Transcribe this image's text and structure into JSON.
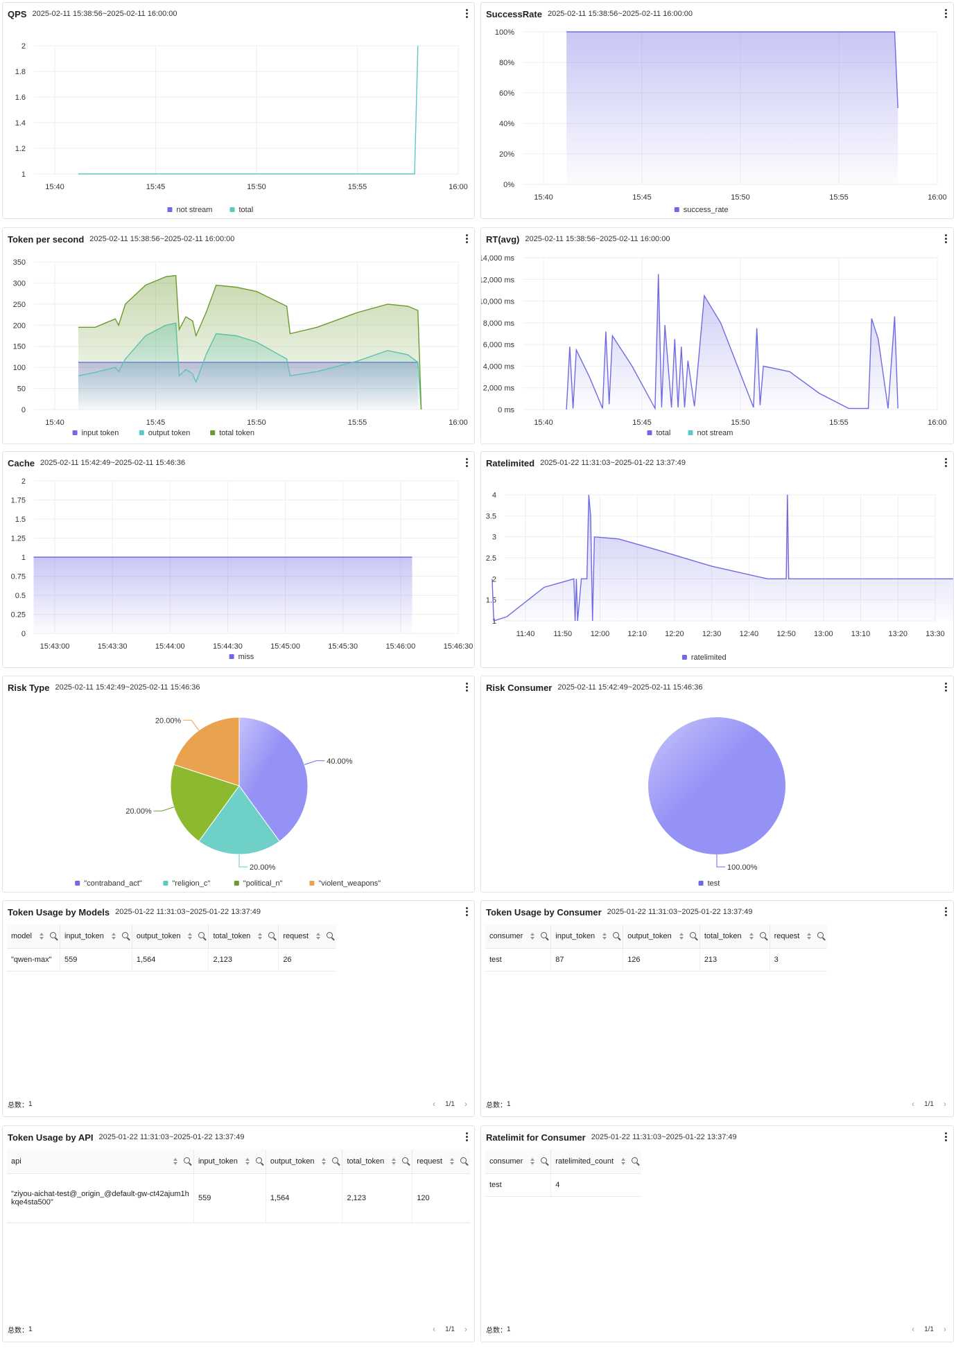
{
  "menu_icon": "more-vertical-icon",
  "panels": {
    "qps": {
      "title": "QPS",
      "range": "2025-02-11 15:38:56~2025-02-11 16:00:00",
      "legend": [
        "not stream",
        "total"
      ]
    },
    "success": {
      "title": "SuccessRate",
      "range": "2025-02-11 15:38:56~2025-02-11 16:00:00",
      "legend": [
        "success_rate"
      ]
    },
    "tps": {
      "title": "Token per second",
      "range": "2025-02-11 15:38:56~2025-02-11 16:00:00",
      "legend": [
        "input token",
        "output token",
        "total token"
      ]
    },
    "rt": {
      "title": "RT(avg)",
      "range": "2025-02-11 15:38:56~2025-02-11 16:00:00",
      "legend": [
        "total",
        "not stream"
      ]
    },
    "cache": {
      "title": "Cache",
      "range": "2025-02-11 15:42:49~2025-02-11 15:46:36",
      "legend": [
        "miss"
      ]
    },
    "ratelimited": {
      "title": "Ratelimited",
      "range": "2025-01-22 11:31:03~2025-01-22 13:37:49",
      "legend": [
        "ratelimited"
      ]
    },
    "risk_type": {
      "title": "Risk Type",
      "range": "2025-02-11 15:42:49~2025-02-11 15:46:36",
      "legend": [
        "\"contraband_act\"",
        "\"religion_c\"",
        "\"political_n\"",
        "\"violent_weapons\""
      ]
    },
    "risk_consumer": {
      "title": "Risk Consumer",
      "range": "2025-02-11 15:42:49~2025-02-11 15:46:36",
      "legend": [
        "test"
      ]
    },
    "usage_models": {
      "title": "Token Usage by Models",
      "range": "2025-01-22 11:31:03~2025-01-22 13:37:49"
    },
    "usage_consumer": {
      "title": "Token Usage by Consumer",
      "range": "2025-01-22 11:31:03~2025-01-22 13:37:49"
    },
    "usage_api": {
      "title": "Token Usage by API",
      "range": "2025-01-22 11:31:03~2025-01-22 13:37:49"
    },
    "rl_consumer": {
      "title": "Ratelimit for Consumer",
      "range": "2025-01-22 11:31:03~2025-01-22 13:37:49"
    }
  },
  "tables": {
    "usage_models": {
      "columns": [
        "model",
        "input_token",
        "output_token",
        "total_token",
        "request"
      ],
      "rows": [
        [
          "\"qwen-max\"",
          "559",
          "1,564",
          "2,123",
          "26"
        ]
      ],
      "total_label": "总数：",
      "total": "1",
      "page": "1/1"
    },
    "usage_consumer": {
      "columns": [
        "consumer",
        "input_token",
        "output_token",
        "total_token",
        "request"
      ],
      "rows": [
        [
          "test",
          "87",
          "126",
          "213",
          "3"
        ]
      ],
      "total_label": "总数：",
      "total": "1",
      "page": "1/1"
    },
    "usage_api": {
      "columns": [
        "api",
        "input_token",
        "output_token",
        "total_token",
        "request"
      ],
      "rows": [
        [
          "\"ziyou-aichat-test@_origin_@default-gw-ct42ajum1hkqe4sta500\"",
          "559",
          "1,564",
          "2,123",
          "120"
        ]
      ],
      "total_label": "总数：",
      "total": "1",
      "page": "1/1"
    },
    "rl_consumer": {
      "columns": [
        "consumer",
        "ratelimited_count"
      ],
      "rows": [
        [
          "test",
          "4"
        ]
      ],
      "total_label": "总数：",
      "total": "1",
      "page": "1/1"
    }
  },
  "colors": {
    "purple": "#6f6ae3",
    "teal": "#5bc8c3",
    "green": "#6b9a2c",
    "orange": "#e9a24e",
    "grid": "#eeeeee"
  },
  "chart_data": [
    {
      "id": "qps",
      "type": "line",
      "title": "QPS",
      "x_ticks": [
        "15:40",
        "15:45",
        "15:50",
        "15:55",
        "16:00"
      ],
      "y_ticks": [
        "1",
        "1.2",
        "1.4",
        "1.6",
        "1.8",
        "2"
      ],
      "ylim": [
        1,
        2
      ],
      "series": [
        {
          "name": "not stream",
          "points": []
        },
        {
          "name": "total",
          "points": [
            [
              "15:41:10",
              1
            ],
            [
              "15:57:50",
              1
            ],
            [
              "15:58:00",
              2
            ]
          ]
        }
      ]
    },
    {
      "id": "success",
      "type": "area",
      "title": "SuccessRate",
      "x_ticks": [
        "15:40",
        "15:45",
        "15:50",
        "15:55",
        "16:00"
      ],
      "y_ticks": [
        "0%",
        "20%",
        "40%",
        "60%",
        "80%",
        "100%"
      ],
      "ylim": [
        0,
        100
      ],
      "series": [
        {
          "name": "success_rate",
          "points": [
            [
              "15:41:10",
              100
            ],
            [
              "15:57:50",
              100
            ],
            [
              "15:58:00",
              50
            ]
          ]
        }
      ]
    },
    {
      "id": "tps",
      "type": "area",
      "title": "Token per second",
      "x_ticks": [
        "15:40",
        "15:45",
        "15:50",
        "15:55",
        "16:00"
      ],
      "y_ticks": [
        "0",
        "50",
        "100",
        "150",
        "200",
        "250",
        "300",
        "350"
      ],
      "ylim": [
        0,
        350
      ],
      "series": [
        {
          "name": "input token",
          "points": [
            [
              "15:41:10",
              112
            ],
            [
              "15:58:00",
              112
            ]
          ]
        },
        {
          "name": "output token",
          "points": [
            [
              "15:41:10",
              80
            ],
            [
              "15:42:00",
              88
            ],
            [
              "15:43:00",
              100
            ],
            [
              "15:43:10",
              90
            ],
            [
              "15:43:30",
              120
            ],
            [
              "15:44:30",
              175
            ],
            [
              "15:45:30",
              200
            ],
            [
              "15:46:00",
              205
            ],
            [
              "15:46:10",
              80
            ],
            [
              "15:46:30",
              95
            ],
            [
              "15:46:50",
              85
            ],
            [
              "15:47:00",
              65
            ],
            [
              "15:47:30",
              130
            ],
            [
              "15:48:00",
              180
            ],
            [
              "15:49:00",
              175
            ],
            [
              "15:50:00",
              160
            ],
            [
              "15:51:30",
              120
            ],
            [
              "15:51:40",
              80
            ],
            [
              "15:53:00",
              90
            ],
            [
              "15:55:00",
              115
            ],
            [
              "15:56:30",
              140
            ],
            [
              "15:57:30",
              130
            ],
            [
              "15:58:00",
              112
            ],
            [
              "15:58:10",
              0
            ]
          ]
        },
        {
          "name": "total token",
          "points": [
            [
              "15:41:10",
              195
            ],
            [
              "15:42:00",
              195
            ],
            [
              "15:43:00",
              215
            ],
            [
              "15:43:10",
              200
            ],
            [
              "15:43:30",
              250
            ],
            [
              "15:44:30",
              295
            ],
            [
              "15:45:30",
              315
            ],
            [
              "15:46:00",
              318
            ],
            [
              "15:46:10",
              190
            ],
            [
              "15:46:30",
              220
            ],
            [
              "15:46:50",
              210
            ],
            [
              "15:47:00",
              175
            ],
            [
              "15:47:30",
              230
            ],
            [
              "15:48:00",
              295
            ],
            [
              "15:49:00",
              290
            ],
            [
              "15:50:00",
              280
            ],
            [
              "15:51:30",
              245
            ],
            [
              "15:51:40",
              180
            ],
            [
              "15:53:00",
              195
            ],
            [
              "15:55:00",
              230
            ],
            [
              "15:56:30",
              250
            ],
            [
              "15:57:30",
              245
            ],
            [
              "15:58:00",
              235
            ],
            [
              "15:58:10",
              0
            ]
          ]
        }
      ]
    },
    {
      "id": "rt",
      "type": "area",
      "title": "RT(avg)",
      "x_ticks": [
        "15:40",
        "15:45",
        "15:50",
        "15:55",
        "16:00"
      ],
      "y_ticks": [
        "0 ms",
        "2,000 ms",
        "4,000 ms",
        "6,000 ms",
        "8,000 ms",
        "10,000 ms",
        "12,000 ms",
        "14,000 ms"
      ],
      "ylim": [
        0,
        14000
      ],
      "series": [
        {
          "name": "total",
          "points": [
            [
              "15:41:10",
              0
            ],
            [
              "15:41:20",
              5800
            ],
            [
              "15:41:30",
              100
            ],
            [
              "15:41:40",
              5500
            ],
            [
              "15:42:20",
              3000
            ],
            [
              "15:43:00",
              100
            ],
            [
              "15:43:10",
              7200
            ],
            [
              "15:43:20",
              500
            ],
            [
              "15:43:30",
              6800
            ],
            [
              "15:44:30",
              4000
            ],
            [
              "15:45:40",
              100
            ],
            [
              "15:45:50",
              12500
            ],
            [
              "15:46:00",
              200
            ],
            [
              "15:46:10",
              7800
            ],
            [
              "15:46:30",
              200
            ],
            [
              "15:46:40",
              6500
            ],
            [
              "15:46:50",
              200
            ],
            [
              "15:47:00",
              5800
            ],
            [
              "15:47:10",
              200
            ],
            [
              "15:47:20",
              4500
            ],
            [
              "15:47:40",
              300
            ],
            [
              "15:48:10",
              10500
            ],
            [
              "15:49:00",
              8000
            ],
            [
              "15:50:40",
              200
            ],
            [
              "15:50:50",
              7500
            ],
            [
              "15:51:00",
              400
            ],
            [
              "15:51:10",
              4000
            ],
            [
              "15:52:30",
              3500
            ],
            [
              "15:54:00",
              1500
            ],
            [
              "15:55:30",
              100
            ],
            [
              "15:56:30",
              100
            ],
            [
              "15:56:40",
              8400
            ],
            [
              "15:57:00",
              6500
            ],
            [
              "15:57:30",
              100
            ],
            [
              "15:57:50",
              8600
            ],
            [
              "15:58:00",
              100
            ]
          ]
        },
        {
          "name": "not stream",
          "points": []
        }
      ]
    },
    {
      "id": "cache",
      "type": "area",
      "title": "Cache",
      "x_ticks": [
        "15:43:00",
        "15:43:30",
        "15:44:00",
        "15:44:30",
        "15:45:00",
        "15:45:30",
        "15:46:00",
        "15:46:30"
      ],
      "y_ticks": [
        "0",
        "0.25",
        "0.5",
        "0.75",
        "1",
        "1.25",
        "1.5",
        "1.75",
        "2"
      ],
      "ylim": [
        0,
        2
      ],
      "series": [
        {
          "name": "miss",
          "points": [
            [
              "15:42:49",
              1
            ],
            [
              "15:46:06",
              1
            ]
          ]
        }
      ]
    },
    {
      "id": "ratelimited",
      "type": "area",
      "title": "Ratelimited",
      "x_ticks": [
        "11:40",
        "11:50",
        "12:00",
        "12:10",
        "12:20",
        "12:30",
        "12:40",
        "12:50",
        "13:00",
        "13:10",
        "13:20",
        "13:30"
      ],
      "y_ticks": [
        "1",
        "1.5",
        "2",
        "2.5",
        "3",
        "3.5",
        "4"
      ],
      "ylim": [
        1,
        4
      ],
      "series": [
        {
          "name": "ratelimited",
          "points": [
            [
              "11:31:03",
              2
            ],
            [
              "11:31:30",
              1
            ],
            [
              "11:35:00",
              1.1
            ],
            [
              "11:45:00",
              1.8
            ],
            [
              "11:53:00",
              2
            ],
            [
              "11:53:20",
              1
            ],
            [
              "11:53:40",
              2
            ],
            [
              "11:54:00",
              1
            ],
            [
              "11:55:00",
              2
            ],
            [
              "11:56:30",
              2
            ],
            [
              "11:57:00",
              4
            ],
            [
              "11:57:30",
              3.5
            ],
            [
              "11:58:00",
              1
            ],
            [
              "11:58:30",
              3
            ],
            [
              "12:05:00",
              2.95
            ],
            [
              "12:15:00",
              2.7
            ],
            [
              "12:30:00",
              2.3
            ],
            [
              "12:45:00",
              2
            ],
            [
              "12:50:00",
              2
            ],
            [
              "12:50:20",
              4
            ],
            [
              "12:50:40",
              2
            ],
            [
              "13:37:49",
              2
            ]
          ]
        }
      ]
    },
    {
      "id": "risk_type",
      "type": "pie",
      "title": "Risk Type",
      "labels": [
        "\"contraband_act\"",
        "\"religion_c\"",
        "\"political_n\"",
        "\"violent_weapons\""
      ],
      "values": [
        40,
        20,
        20,
        20
      ],
      "value_labels": [
        "40.00%",
        "20.00%",
        "20.00%",
        "20.00%"
      ]
    },
    {
      "id": "risk_consumer",
      "type": "pie",
      "title": "Risk Consumer",
      "labels": [
        "test"
      ],
      "values": [
        100
      ],
      "value_labels": [
        "100.00%"
      ]
    }
  ]
}
